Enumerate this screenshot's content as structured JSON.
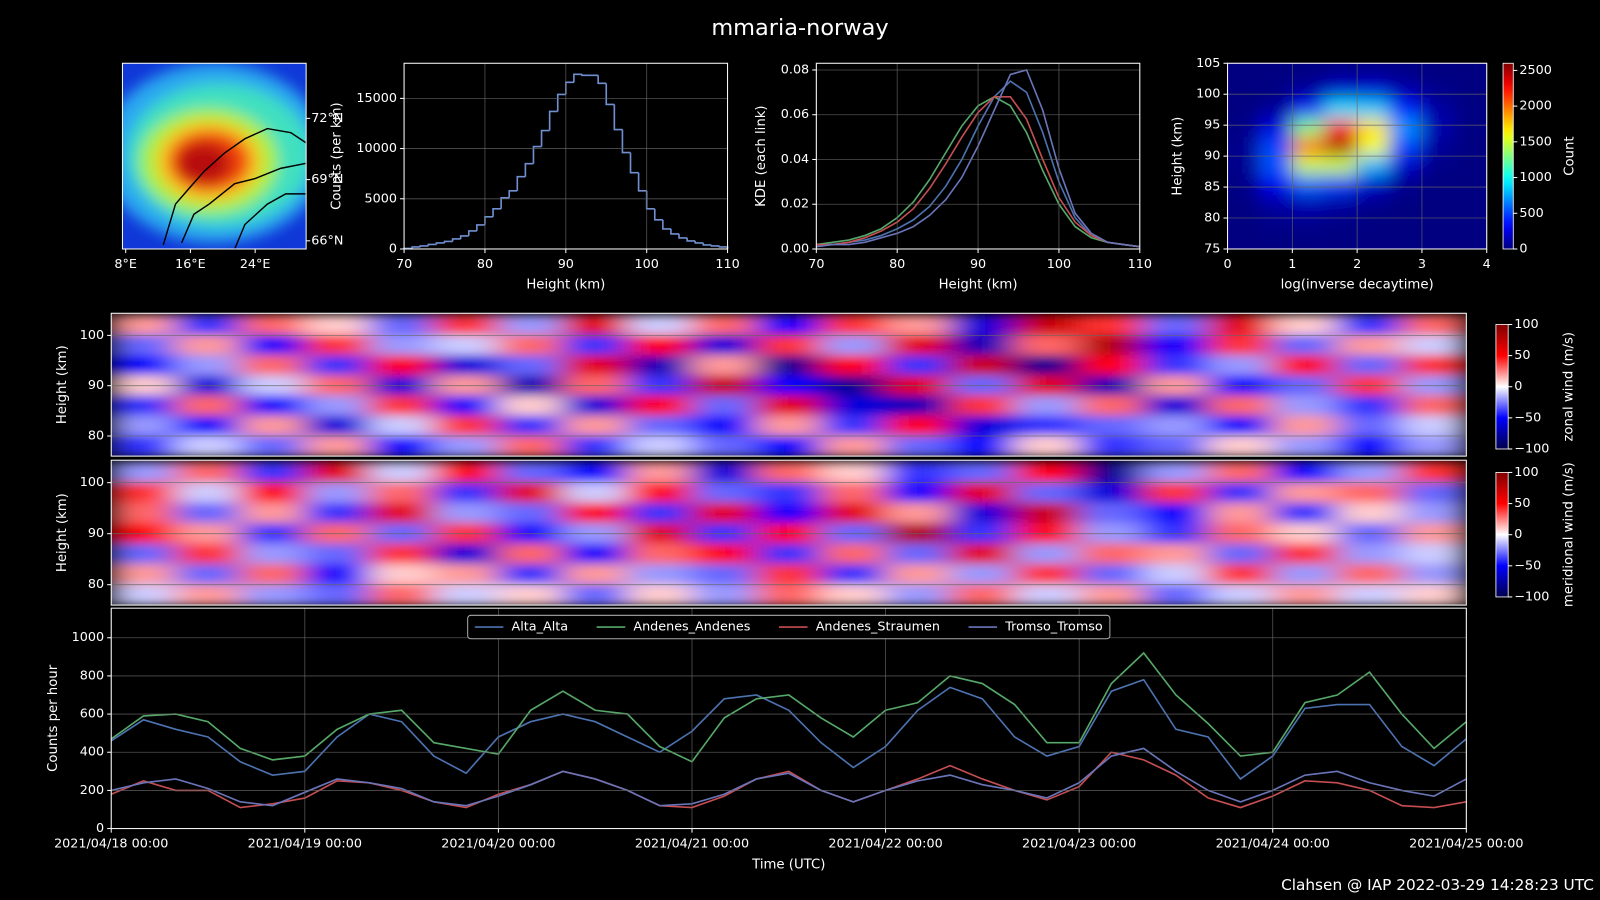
{
  "title": "mmaria-norway",
  "footer": "Clahsen @ IAP 2022-03-29 14:28:23 UTC",
  "chart_data": [
    {
      "type": "map",
      "xlim": [
        7.6,
        30.3
      ],
      "ylim": [
        65.6,
        74.7
      ],
      "xticks": [
        {
          "value": 8,
          "label": "8°E"
        },
        {
          "value": 16,
          "label": "16°E"
        },
        {
          "value": 24,
          "label": "24°E"
        }
      ],
      "yticks": [
        {
          "value": 66,
          "label": "66°N"
        },
        {
          "value": 69,
          "label": "69°N"
        },
        {
          "value": 72,
          "label": "72°N"
        }
      ],
      "ytick_side": "right"
    },
    {
      "type": "histogram",
      "color": "#6f8fd0",
      "grid": true,
      "xlabel": "Height (km)",
      "ylabel": "Counts (per km)",
      "bins": [
        70,
        71,
        72,
        73,
        74,
        75,
        76,
        77,
        78,
        79,
        80,
        81,
        82,
        83,
        84,
        85,
        86,
        87,
        88,
        89,
        90,
        91,
        92,
        93,
        94,
        95,
        96,
        97,
        98,
        99,
        100,
        101,
        102,
        103,
        104,
        105,
        106,
        107,
        108,
        109,
        110
      ],
      "values": [
        50,
        200,
        300,
        450,
        600,
        750,
        1000,
        1300,
        1800,
        2400,
        3200,
        4000,
        5100,
        5800,
        7200,
        8500,
        10200,
        11800,
        13700,
        15400,
        16600,
        17400,
        17300,
        17300,
        16500,
        14400,
        11900,
        9600,
        7600,
        5800,
        4000,
        2900,
        2000,
        1500,
        1100,
        800,
        600,
        400,
        300,
        200
      ],
      "xlim": [
        70,
        110
      ],
      "ylim": [
        0,
        18500
      ],
      "xticks": [
        70,
        80,
        90,
        100,
        110
      ],
      "yticks": [
        0,
        5000,
        10000,
        15000
      ]
    },
    {
      "type": "line",
      "grid": true,
      "xlabel": "Height (km)",
      "ylabel": "KDE (each link)",
      "x": [
        70,
        72,
        74,
        76,
        78,
        80,
        82,
        84,
        86,
        88,
        90,
        92,
        94,
        96,
        98,
        100,
        102,
        104,
        106,
        108,
        110
      ],
      "series": [
        {
          "color": "#4c72b0",
          "values": [
            0.002,
            0.002,
            0.003,
            0.004,
            0.006,
            0.009,
            0.013,
            0.019,
            0.028,
            0.04,
            0.055,
            0.068,
            0.075,
            0.07,
            0.052,
            0.03,
            0.014,
            0.006,
            0.003,
            0.002,
            0.001
          ]
        },
        {
          "color": "#55a868",
          "values": [
            0.002,
            0.003,
            0.004,
            0.006,
            0.009,
            0.014,
            0.021,
            0.031,
            0.043,
            0.055,
            0.064,
            0.068,
            0.064,
            0.052,
            0.035,
            0.02,
            0.01,
            0.005,
            0.003,
            0.002,
            0.001
          ]
        },
        {
          "color": "#c44e52",
          "values": [
            0.002,
            0.002,
            0.003,
            0.005,
            0.008,
            0.012,
            0.018,
            0.027,
            0.038,
            0.05,
            0.061,
            0.068,
            0.068,
            0.058,
            0.04,
            0.023,
            0.012,
            0.006,
            0.003,
            0.002,
            0.001
          ]
        },
        {
          "color": "#6a74b8",
          "values": [
            0.001,
            0.002,
            0.002,
            0.003,
            0.005,
            0.007,
            0.01,
            0.015,
            0.022,
            0.032,
            0.046,
            0.062,
            0.078,
            0.08,
            0.062,
            0.036,
            0.016,
            0.007,
            0.003,
            0.002,
            0.001
          ]
        }
      ],
      "xlim": [
        70,
        110
      ],
      "ylim": [
        0,
        0.083
      ],
      "xticks": [
        70,
        80,
        90,
        100,
        110
      ],
      "yticks": [
        {
          "value": 0,
          "label": "0.00"
        },
        {
          "value": 0.02,
          "label": "0.02"
        },
        {
          "value": 0.04,
          "label": "0.04"
        },
        {
          "value": 0.06,
          "label": "0.06"
        },
        {
          "value": 0.08,
          "label": "0.08"
        }
      ]
    },
    {
      "type": "heatmap",
      "cmap": "jet",
      "grid": true,
      "xlabel": "log(inverse decaytime)",
      "ylabel": "Height (km)",
      "zlabel": "Count",
      "x": [
        0.25,
        0.75,
        1.25,
        1.75,
        2.25,
        2.75,
        3.25,
        3.75
      ],
      "y": [
        103.5,
        100.5,
        97.5,
        94.5,
        91.5,
        88.5,
        85.5,
        82.5,
        79.5,
        76.5
      ],
      "values": [
        [
          0,
          0,
          10,
          30,
          40,
          20,
          5,
          0
        ],
        [
          0,
          10,
          80,
          200,
          220,
          120,
          30,
          5
        ],
        [
          5,
          60,
          400,
          900,
          850,
          400,
          90,
          10
        ],
        [
          20,
          250,
          1300,
          2200,
          1700,
          700,
          120,
          10
        ],
        [
          40,
          500,
          2000,
          2500,
          1600,
          500,
          70,
          5
        ],
        [
          40,
          550,
          1500,
          1500,
          800,
          200,
          20,
          0
        ],
        [
          20,
          300,
          600,
          500,
          200,
          40,
          5,
          0
        ],
        [
          5,
          100,
          150,
          100,
          40,
          5,
          0,
          0
        ],
        [
          0,
          30,
          40,
          20,
          5,
          0,
          0,
          0
        ],
        [
          0,
          5,
          5,
          0,
          0,
          0,
          0,
          0
        ]
      ],
      "xlim": [
        0,
        4
      ],
      "ylim": [
        75,
        105
      ],
      "zlim": [
        0,
        2600
      ],
      "xticks": [
        0,
        1,
        2,
        3,
        4
      ],
      "yticks": [
        75,
        80,
        85,
        90,
        95,
        100,
        105
      ],
      "zticks": [
        0,
        500,
        1000,
        1500,
        2000,
        2500
      ]
    },
    {
      "type": "heatmap",
      "cmap": "seismic",
      "grid": true,
      "ylabel": "Height (km)",
      "zlabel": "zonal wind (m/s)",
      "y": [
        102,
        98,
        94,
        90,
        86,
        82,
        78
      ],
      "values": [
        [
          20,
          -40,
          30,
          10,
          -30,
          40,
          -20,
          60,
          -10,
          30,
          -50,
          40,
          20,
          -60,
          70,
          40,
          -30,
          60,
          10,
          -40,
          30
        ],
        [
          -30,
          20,
          -50,
          40,
          -20,
          -10,
          30,
          -40,
          50,
          -60,
          40,
          -20,
          60,
          -70,
          30,
          80,
          -50,
          40,
          -30,
          20,
          -10
        ],
        [
          -50,
          -20,
          30,
          -40,
          50,
          -60,
          -30,
          60,
          -70,
          20,
          -80,
          50,
          -40,
          70,
          -80,
          50,
          -40,
          -20,
          50,
          -30,
          40
        ],
        [
          10,
          -60,
          -10,
          30,
          -60,
          20,
          -70,
          30,
          -40,
          70,
          -50,
          -80,
          60,
          -30,
          60,
          -70,
          20,
          -50,
          -30,
          40,
          -20
        ],
        [
          -40,
          30,
          -50,
          -20,
          40,
          -50,
          10,
          -60,
          50,
          -30,
          60,
          -60,
          -70,
          40,
          -20,
          30,
          -60,
          30,
          -20,
          -40,
          30
        ],
        [
          -20,
          -50,
          20,
          -60,
          -10,
          40,
          -40,
          20,
          -30,
          -50,
          20,
          -40,
          50,
          -60,
          -40,
          -30,
          -20,
          -50,
          20,
          -30,
          -10
        ],
        [
          -40,
          -10,
          -30,
          20,
          -50,
          -20,
          30,
          -40,
          -10,
          -30,
          -50,
          20,
          -30,
          -50,
          10,
          -40,
          -30,
          10,
          -20,
          -50,
          -20
        ]
      ],
      "xlim": [
        "2021/04/18 00:00",
        "2021/04/25 00:00"
      ],
      "ylim": [
        76,
        104.4
      ],
      "zlim": [
        -100,
        100
      ],
      "yticks": [
        80,
        90,
        100
      ],
      "zticks": [
        {
          "value": -100,
          "label": "−100"
        },
        {
          "value": -50,
          "label": "−50"
        },
        0,
        50,
        100
      ]
    },
    {
      "type": "heatmap",
      "cmap": "seismic",
      "grid": true,
      "ylabel": "Height (km)",
      "zlabel": "meridional wind (m/s)",
      "y": [
        102,
        98,
        94,
        90,
        86,
        82,
        78
      ],
      "values": [
        [
          -20,
          30,
          -40,
          60,
          -10,
          50,
          -30,
          -50,
          20,
          -60,
          30,
          10,
          -40,
          -30,
          50,
          -80,
          -20,
          30,
          -50,
          -20,
          40
        ],
        [
          40,
          -10,
          50,
          -20,
          30,
          -40,
          60,
          -10,
          50,
          -30,
          -40,
          30,
          -50,
          60,
          -30,
          -60,
          40,
          -40,
          20,
          30,
          -30
        ],
        [
          30,
          -30,
          20,
          -40,
          60,
          -20,
          -30,
          50,
          -40,
          60,
          -50,
          60,
          20,
          -60,
          70,
          -30,
          -50,
          20,
          -40,
          10,
          -20
        ],
        [
          50,
          20,
          -40,
          30,
          -30,
          40,
          -50,
          -20,
          60,
          -40,
          50,
          -30,
          80,
          -40,
          50,
          -20,
          -40,
          30,
          10,
          -30,
          20
        ],
        [
          -30,
          40,
          -20,
          -30,
          40,
          -60,
          30,
          -50,
          30,
          50,
          -40,
          30,
          -30,
          60,
          -20,
          30,
          20,
          -30,
          40,
          -20,
          -10
        ],
        [
          20,
          -30,
          30,
          -50,
          10,
          20,
          -40,
          20,
          -20,
          -30,
          40,
          -40,
          20,
          -20,
          40,
          -30,
          -10,
          40,
          -20,
          30,
          -20
        ],
        [
          -10,
          20,
          -20,
          -30,
          30,
          -10,
          10,
          -30,
          10,
          -20,
          30,
          10,
          -20,
          30,
          -10,
          20,
          -30,
          -10,
          20,
          -10,
          10
        ]
      ],
      "xlim": [
        "2021/04/18 00:00",
        "2021/04/25 00:00"
      ],
      "ylim": [
        76,
        104.4
      ],
      "zlim": [
        -100,
        100
      ],
      "yticks": [
        80,
        90,
        100
      ],
      "zticks": [
        {
          "value": -100,
          "label": "−100"
        },
        {
          "value": -50,
          "label": "−50"
        },
        0,
        50,
        100
      ]
    },
    {
      "type": "line",
      "grid": true,
      "legend": "upper center",
      "xlabel": "Time (UTC)",
      "ylabel": "Counts per hour",
      "x": [
        "2021/04/18 00:00",
        "2021/04/18 04:00",
        "2021/04/18 08:00",
        "2021/04/18 12:00",
        "2021/04/18 16:00",
        "2021/04/18 20:00",
        "2021/04/19 00:00",
        "2021/04/19 04:00",
        "2021/04/19 08:00",
        "2021/04/19 12:00",
        "2021/04/19 16:00",
        "2021/04/19 20:00",
        "2021/04/20 00:00",
        "2021/04/20 04:00",
        "2021/04/20 08:00",
        "2021/04/20 12:00",
        "2021/04/20 16:00",
        "2021/04/20 20:00",
        "2021/04/21 00:00",
        "2021/04/21 04:00",
        "2021/04/21 08:00",
        "2021/04/21 12:00",
        "2021/04/21 16:00",
        "2021/04/21 20:00",
        "2021/04/22 00:00",
        "2021/04/22 04:00",
        "2021/04/22 08:00",
        "2021/04/22 12:00",
        "2021/04/22 16:00",
        "2021/04/22 20:00",
        "2021/04/23 00:00",
        "2021/04/23 04:00",
        "2021/04/23 08:00",
        "2021/04/23 12:00",
        "2021/04/23 16:00",
        "2021/04/23 20:00",
        "2021/04/24 00:00",
        "2021/04/24 04:00",
        "2021/04/24 08:00",
        "2021/04/24 12:00",
        "2021/04/24 16:00",
        "2021/04/24 20:00",
        "2021/04/25 00:00"
      ],
      "series": [
        {
          "name": "Alta_Alta",
          "color": "#4c72b0",
          "values": [
            460,
            570,
            520,
            480,
            350,
            280,
            300,
            480,
            600,
            560,
            380,
            290,
            480,
            560,
            600,
            560,
            480,
            400,
            510,
            680,
            700,
            620,
            450,
            320,
            430,
            620,
            740,
            680,
            480,
            380,
            430,
            720,
            780,
            520,
            480,
            260,
            380,
            630,
            650,
            650,
            430,
            330,
            470
          ]
        },
        {
          "name": "Andenes_Andenes",
          "color": "#55a868",
          "values": [
            470,
            590,
            600,
            560,
            420,
            360,
            380,
            520,
            600,
            620,
            450,
            420,
            390,
            620,
            720,
            620,
            600,
            430,
            350,
            580,
            680,
            700,
            580,
            480,
            620,
            660,
            800,
            760,
            650,
            450,
            450,
            760,
            920,
            700,
            550,
            380,
            400,
            660,
            700,
            820,
            600,
            420,
            560
          ]
        },
        {
          "name": "Andenes_Straumen",
          "color": "#c44e52",
          "values": [
            180,
            250,
            200,
            200,
            110,
            130,
            160,
            250,
            240,
            200,
            140,
            110,
            180,
            230,
            300,
            260,
            200,
            120,
            110,
            170,
            260,
            300,
            200,
            140,
            200,
            260,
            330,
            260,
            200,
            150,
            220,
            400,
            360,
            280,
            160,
            110,
            170,
            250,
            240,
            200,
            120,
            110,
            140
          ]
        },
        {
          "name": "Tromso_Tromso",
          "color": "#6a74b8",
          "values": [
            200,
            240,
            260,
            210,
            140,
            120,
            190,
            260,
            240,
            210,
            140,
            120,
            170,
            230,
            300,
            260,
            200,
            120,
            130,
            180,
            260,
            290,
            200,
            140,
            200,
            250,
            280,
            230,
            200,
            160,
            240,
            380,
            420,
            300,
            200,
            140,
            200,
            280,
            300,
            240,
            200,
            170,
            260
          ]
        }
      ],
      "xlim": [
        "2021/04/18 00:00",
        "2021/04/25 00:00"
      ],
      "ylim": [
        0,
        1155
      ],
      "xticks": [
        "2021/04/18 00:00",
        "2021/04/19 00:00",
        "2021/04/20 00:00",
        "2021/04/21 00:00",
        "2021/04/22 00:00",
        "2021/04/23 00:00",
        "2021/04/24 00:00",
        "2021/04/25 00:00"
      ],
      "yticks": [
        0,
        200,
        400,
        600,
        800,
        1000
      ]
    }
  ]
}
